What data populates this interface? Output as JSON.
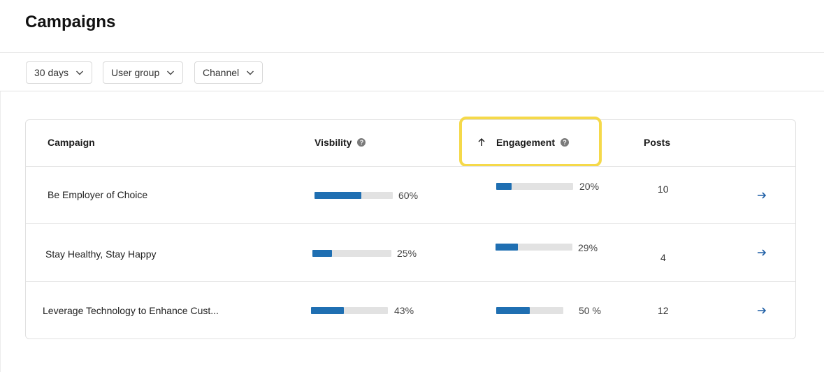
{
  "page": {
    "title": "Campaigns"
  },
  "filters": [
    {
      "label": "30 days"
    },
    {
      "label": "User group"
    },
    {
      "label": "Channel"
    }
  ],
  "table": {
    "columns": {
      "campaign": "Campaign",
      "visibility": "Visbility",
      "engagement": "Engagement",
      "posts": "Posts"
    },
    "sort": {
      "column": "engagement",
      "direction": "ascending"
    },
    "rows": [
      {
        "name": "Be Employer of Choice",
        "visibility": 0.6,
        "visibility_label": "60%",
        "engagement": 0.2,
        "engagement_label": "20%",
        "posts": "10"
      },
      {
        "name": "Stay Healthy, Stay Happy",
        "visibility": 0.25,
        "visibility_label": "25%",
        "engagement": 0.29,
        "engagement_label": "29%",
        "posts": "4"
      },
      {
        "name": "Leverage Technology to Enhance Cust...",
        "visibility": 0.43,
        "visibility_label": "43%",
        "engagement": 0.5,
        "engagement_label": "50 %",
        "posts": "12"
      }
    ]
  },
  "colors": {
    "bar_fill": "#1f6fb2",
    "bar_track": "#e2e2e2",
    "highlight": "#f5d94a",
    "link": "#1f5fa6"
  },
  "icons": {
    "filter_dropdown": "chevron-down-icon",
    "help": "help-icon",
    "sort": "arrow-up-icon",
    "open_row": "arrow-right-icon"
  }
}
